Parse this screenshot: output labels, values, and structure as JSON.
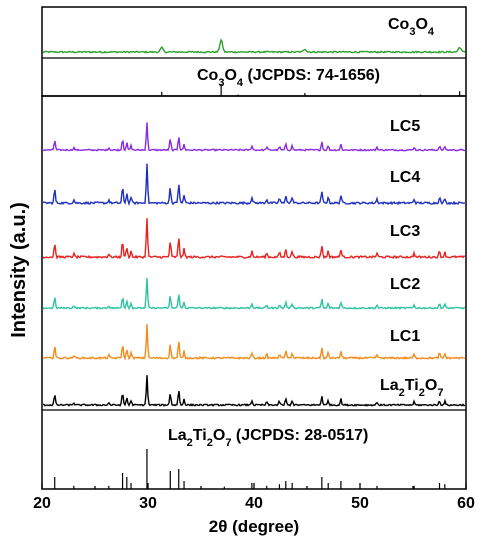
{
  "chart_data": {
    "type": "line",
    "xlabel": "2θ (degree)",
    "ylabel": "Intensity (a.u.)",
    "xlim": [
      20,
      60
    ],
    "x_ticks": [
      "20",
      "30",
      "40",
      "50",
      "60"
    ],
    "panels": [
      {
        "id": "top",
        "series": [
          {
            "name": "Co3O4",
            "label_base": "Co",
            "label_sub1": "3",
            "label_mid": "O",
            "label_sub2": "4",
            "color": "#2ca02c",
            "peaks": [
              [
                31.3,
                0.35
              ],
              [
                36.9,
                1.0
              ],
              [
                44.8,
                0.25
              ],
              [
                59.4,
                0.4
              ]
            ]
          }
        ],
        "reference": {
          "name": "Co3O4 (JCPDS: 74-1656)",
          "label_base": "Co",
          "label_sub1": "3",
          "label_mid": "O",
          "label_sub2": "4",
          "label_tail": " (JCPDS: 74-1656)",
          "lines": [
            [
              31.3,
              0.35
            ],
            [
              36.9,
              1.0
            ],
            [
              38.5,
              0.12
            ],
            [
              44.8,
              0.25
            ],
            [
              55.7,
              0.12
            ],
            [
              59.4,
              0.4
            ]
          ]
        }
      },
      {
        "id": "bottom",
        "series": [
          {
            "name": "LC5",
            "label": "LC5",
            "color": "#8a2be2"
          },
          {
            "name": "LC4",
            "label": "LC4",
            "color": "#1f2fbf"
          },
          {
            "name": "LC3",
            "label": "LC3",
            "color": "#e8231f"
          },
          {
            "name": "LC2",
            "label": "LC2",
            "color": "#2ec4a0"
          },
          {
            "name": "LC1",
            "label": "LC1",
            "color": "#f28c1c"
          },
          {
            "name": "La2Ti2O7",
            "label_base": "La",
            "label_sub1": "2",
            "label_mid": "Ti",
            "label_sub2": "2",
            "label_end": "O",
            "label_sub3": "7",
            "color": "#000000"
          }
        ],
        "shared_peaks": [
          [
            21.2,
            0.35
          ],
          [
            23.0,
            0.08
          ],
          [
            26.3,
            0.08
          ],
          [
            27.6,
            0.4
          ],
          [
            28.0,
            0.25
          ],
          [
            28.4,
            0.15
          ],
          [
            29.9,
            1.0
          ],
          [
            32.1,
            0.4
          ],
          [
            32.9,
            0.5
          ],
          [
            33.4,
            0.2
          ],
          [
            39.8,
            0.15
          ],
          [
            41.2,
            0.1
          ],
          [
            42.4,
            0.12
          ],
          [
            43.0,
            0.2
          ],
          [
            43.6,
            0.15
          ],
          [
            46.4,
            0.3
          ],
          [
            47.0,
            0.15
          ],
          [
            48.2,
            0.2
          ],
          [
            51.6,
            0.1
          ],
          [
            55.1,
            0.1
          ],
          [
            57.5,
            0.15
          ],
          [
            58.0,
            0.12
          ]
        ],
        "reference": {
          "name": "La2Ti2O7 (JCPDS: 28-0517)",
          "label_base": "La",
          "label_sub1": "2",
          "label_mid": "Ti",
          "label_sub2": "2",
          "label_end": "O",
          "label_sub3": "7",
          "label_tail": " (JCPDS: 28-0517)",
          "lines": [
            [
              21.2,
              0.3
            ],
            [
              23.0,
              0.08
            ],
            [
              26.3,
              0.08
            ],
            [
              27.6,
              0.4
            ],
            [
              28.0,
              0.3
            ],
            [
              28.4,
              0.15
            ],
            [
              29.9,
              1.0
            ],
            [
              32.1,
              0.45
            ],
            [
              32.9,
              0.5
            ],
            [
              33.4,
              0.2
            ],
            [
              37.2,
              0.06
            ],
            [
              39.8,
              0.15
            ],
            [
              41.2,
              0.08
            ],
            [
              42.4,
              0.12
            ],
            [
              43.0,
              0.2
            ],
            [
              43.6,
              0.15
            ],
            [
              46.4,
              0.3
            ],
            [
              47.0,
              0.15
            ],
            [
              48.2,
              0.2
            ],
            [
              51.6,
              0.08
            ],
            [
              55.1,
              0.08
            ],
            [
              57.5,
              0.15
            ],
            [
              58.0,
              0.12
            ]
          ]
        }
      }
    ],
    "grid": false,
    "legend": "inline labels at right"
  }
}
